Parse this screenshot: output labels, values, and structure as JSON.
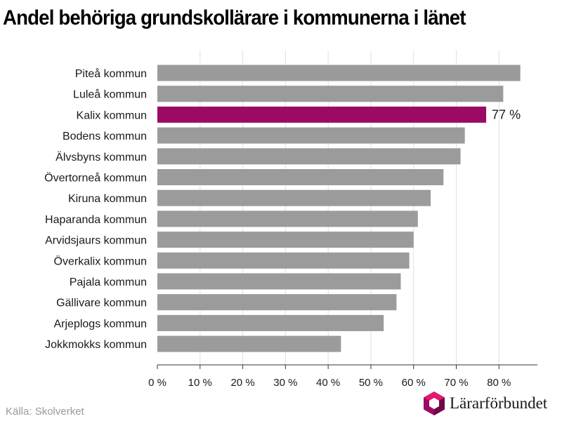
{
  "chart_data": {
    "type": "bar",
    "orientation": "horizontal",
    "title": "Andel behöriga grundskollärare i kommunerna i länet",
    "categories": [
      "Piteå kommun",
      "Luleå kommun",
      "Kalix kommun",
      "Bodens kommun",
      "Älvsbyns kommun",
      "Övertorneå kommun",
      "Kiruna kommun",
      "Haparanda kommun",
      "Arvidsjaurs kommun",
      "Överkalix kommun",
      "Pajala kommun",
      "Gällivare kommun",
      "Arjeplogs kommun",
      "Jokkmokks kommun"
    ],
    "values": [
      85,
      81,
      77,
      72,
      71,
      67,
      64,
      61,
      60,
      59,
      57,
      56,
      53,
      43
    ],
    "highlight": {
      "category": "Kalix kommun",
      "label": "77 %"
    },
    "xlim": [
      0,
      89
    ],
    "x_ticks": [
      0,
      10,
      20,
      30,
      40,
      50,
      60,
      70,
      80
    ],
    "x_tick_labels": [
      "0 %",
      "10 %",
      "20 %",
      "30 %",
      "40 %",
      "50 %",
      "60 %",
      "70 %",
      "80 %"
    ],
    "xlabel": "",
    "ylabel": "",
    "grid": "vertical",
    "legend": "none",
    "colors": {
      "bar": "#9b9b9b",
      "highlight": "#9b0b64",
      "grid": "#e0e0e0",
      "axis": "#333333"
    }
  },
  "footer": {
    "source": "Källa: Skolverket",
    "brand": "Lärarförbundet"
  }
}
